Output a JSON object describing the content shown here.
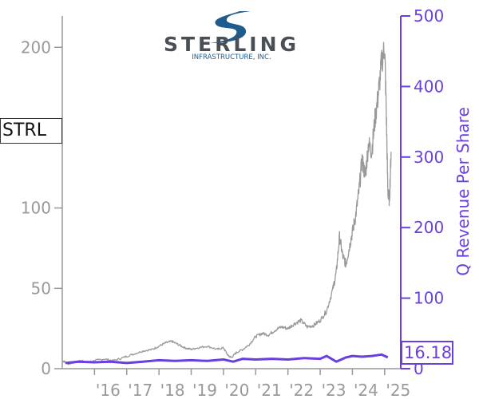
{
  "chart_data": {
    "type": "line",
    "ticker": "STRL",
    "last_value_label": "16.18",
    "logo": {
      "word": "STERLING",
      "sub": "INFRASTRUCTURE, INC.",
      "mark_color": "#1f5b8c"
    },
    "x_tick_labels": [
      "'16",
      "'17",
      "'18",
      "'19",
      "'20",
      "'21",
      "'22",
      "'23",
      "'24",
      "'25"
    ],
    "x_tick_years": [
      2016,
      2017,
      2018,
      2019,
      2020,
      2021,
      2022,
      2023,
      2024,
      2025
    ],
    "xlim": [
      2015.0,
      2025.5
    ],
    "left_axis": {
      "ticks": [
        0,
        50,
        100,
        200
      ],
      "ylim": [
        0,
        220
      ],
      "color": "#999999"
    },
    "right_axis": {
      "label": "Q Revenue Per Share",
      "ticks": [
        0,
        100,
        200,
        300,
        400,
        500
      ],
      "ylim": [
        0,
        500
      ],
      "color": "#6a3fe0"
    },
    "series": [
      {
        "axis": "left",
        "color": "#999999",
        "x": [
          2015.0,
          2015.1,
          2015.2,
          2015.4,
          2015.6,
          2015.8,
          2016.0,
          2016.3,
          2016.6,
          2016.9,
          2017.2,
          2017.5,
          2017.8,
          2018.0,
          2018.2,
          2018.4,
          2018.6,
          2018.8,
          2019.0,
          2019.2,
          2019.5,
          2019.8,
          2020.0,
          2020.15,
          2020.25,
          2020.4,
          2020.6,
          2020.8,
          2021.0,
          2021.2,
          2021.4,
          2021.6,
          2021.8,
          2022.0,
          2022.2,
          2022.4,
          2022.6,
          2022.8,
          2023.0,
          2023.2,
          2023.4,
          2023.5,
          2023.6,
          2023.7,
          2023.8,
          2023.9,
          2024.0,
          2024.1,
          2024.2,
          2024.3,
          2024.4,
          2024.5,
          2024.6,
          2024.7,
          2024.8,
          2024.9,
          2025.0,
          2025.05,
          2025.1,
          2025.15,
          2025.2
        ],
        "values": [
          5,
          4,
          3,
          4,
          5,
          4,
          5,
          6,
          5,
          7,
          9,
          11,
          12,
          14,
          16,
          17,
          15,
          13,
          12,
          13,
          14,
          12,
          13,
          8,
          7,
          10,
          12,
          15,
          20,
          22,
          21,
          24,
          26,
          25,
          28,
          30,
          26,
          27,
          30,
          36,
          50,
          60,
          82,
          70,
          65,
          75,
          85,
          95,
          110,
          130,
          120,
          140,
          135,
          155,
          170,
          190,
          200,
          160,
          110,
          105,
          135
        ]
      },
      {
        "axis": "right",
        "color": "#6a3fe0",
        "x": [
          2015.1,
          2015.5,
          2016.0,
          2016.5,
          2017.0,
          2017.5,
          2018.0,
          2018.5,
          2019.0,
          2019.5,
          2020.0,
          2020.3,
          2020.6,
          2021.0,
          2021.5,
          2022.0,
          2022.5,
          2023.0,
          2023.2,
          2023.5,
          2023.8,
          2024.0,
          2024.3,
          2024.6,
          2024.9,
          2025.1
        ],
        "values": [
          8,
          10,
          9,
          10,
          8,
          10,
          12,
          11,
          12,
          11,
          13,
          10,
          14,
          13,
          14,
          13,
          15,
          14,
          18,
          10,
          16,
          18,
          17,
          18,
          20,
          16
        ]
      }
    ]
  }
}
